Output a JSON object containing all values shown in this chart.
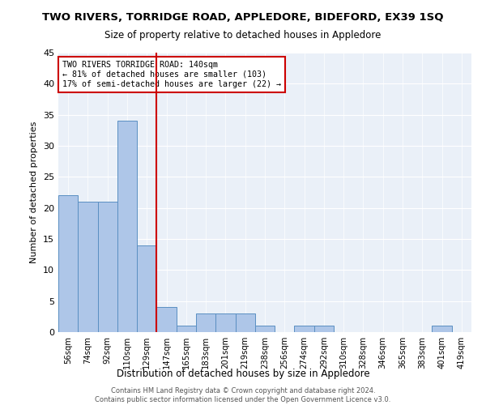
{
  "title": "TWO RIVERS, TORRIDGE ROAD, APPLEDORE, BIDEFORD, EX39 1SQ",
  "subtitle": "Size of property relative to detached houses in Appledore",
  "xlabel": "Distribution of detached houses by size in Appledore",
  "ylabel": "Number of detached properties",
  "bar_color": "#aec6e8",
  "bar_edge_color": "#5a8fc2",
  "background_color": "#eaf0f8",
  "categories": [
    "56sqm",
    "74sqm",
    "92sqm",
    "110sqm",
    "129sqm",
    "147sqm",
    "165sqm",
    "183sqm",
    "201sqm",
    "219sqm",
    "238sqm",
    "256sqm",
    "274sqm",
    "292sqm",
    "310sqm",
    "328sqm",
    "346sqm",
    "365sqm",
    "383sqm",
    "401sqm",
    "419sqm"
  ],
  "values": [
    22,
    21,
    21,
    34,
    14,
    4,
    1,
    3,
    3,
    3,
    1,
    0,
    1,
    1,
    0,
    0,
    0,
    0,
    0,
    1,
    0
  ],
  "vline_x": 4.5,
  "vline_color": "#cc0000",
  "annotation_text": "TWO RIVERS TORRIDGE ROAD: 140sqm\n← 81% of detached houses are smaller (103)\n17% of semi-detached houses are larger (22) →",
  "annotation_box_color": "white",
  "annotation_box_edge_color": "#cc0000",
  "ylim": [
    0,
    45
  ],
  "yticks": [
    0,
    5,
    10,
    15,
    20,
    25,
    30,
    35,
    40,
    45
  ],
  "footer_line1": "Contains HM Land Registry data © Crown copyright and database right 2024.",
  "footer_line2": "Contains public sector information licensed under the Open Government Licence v3.0."
}
